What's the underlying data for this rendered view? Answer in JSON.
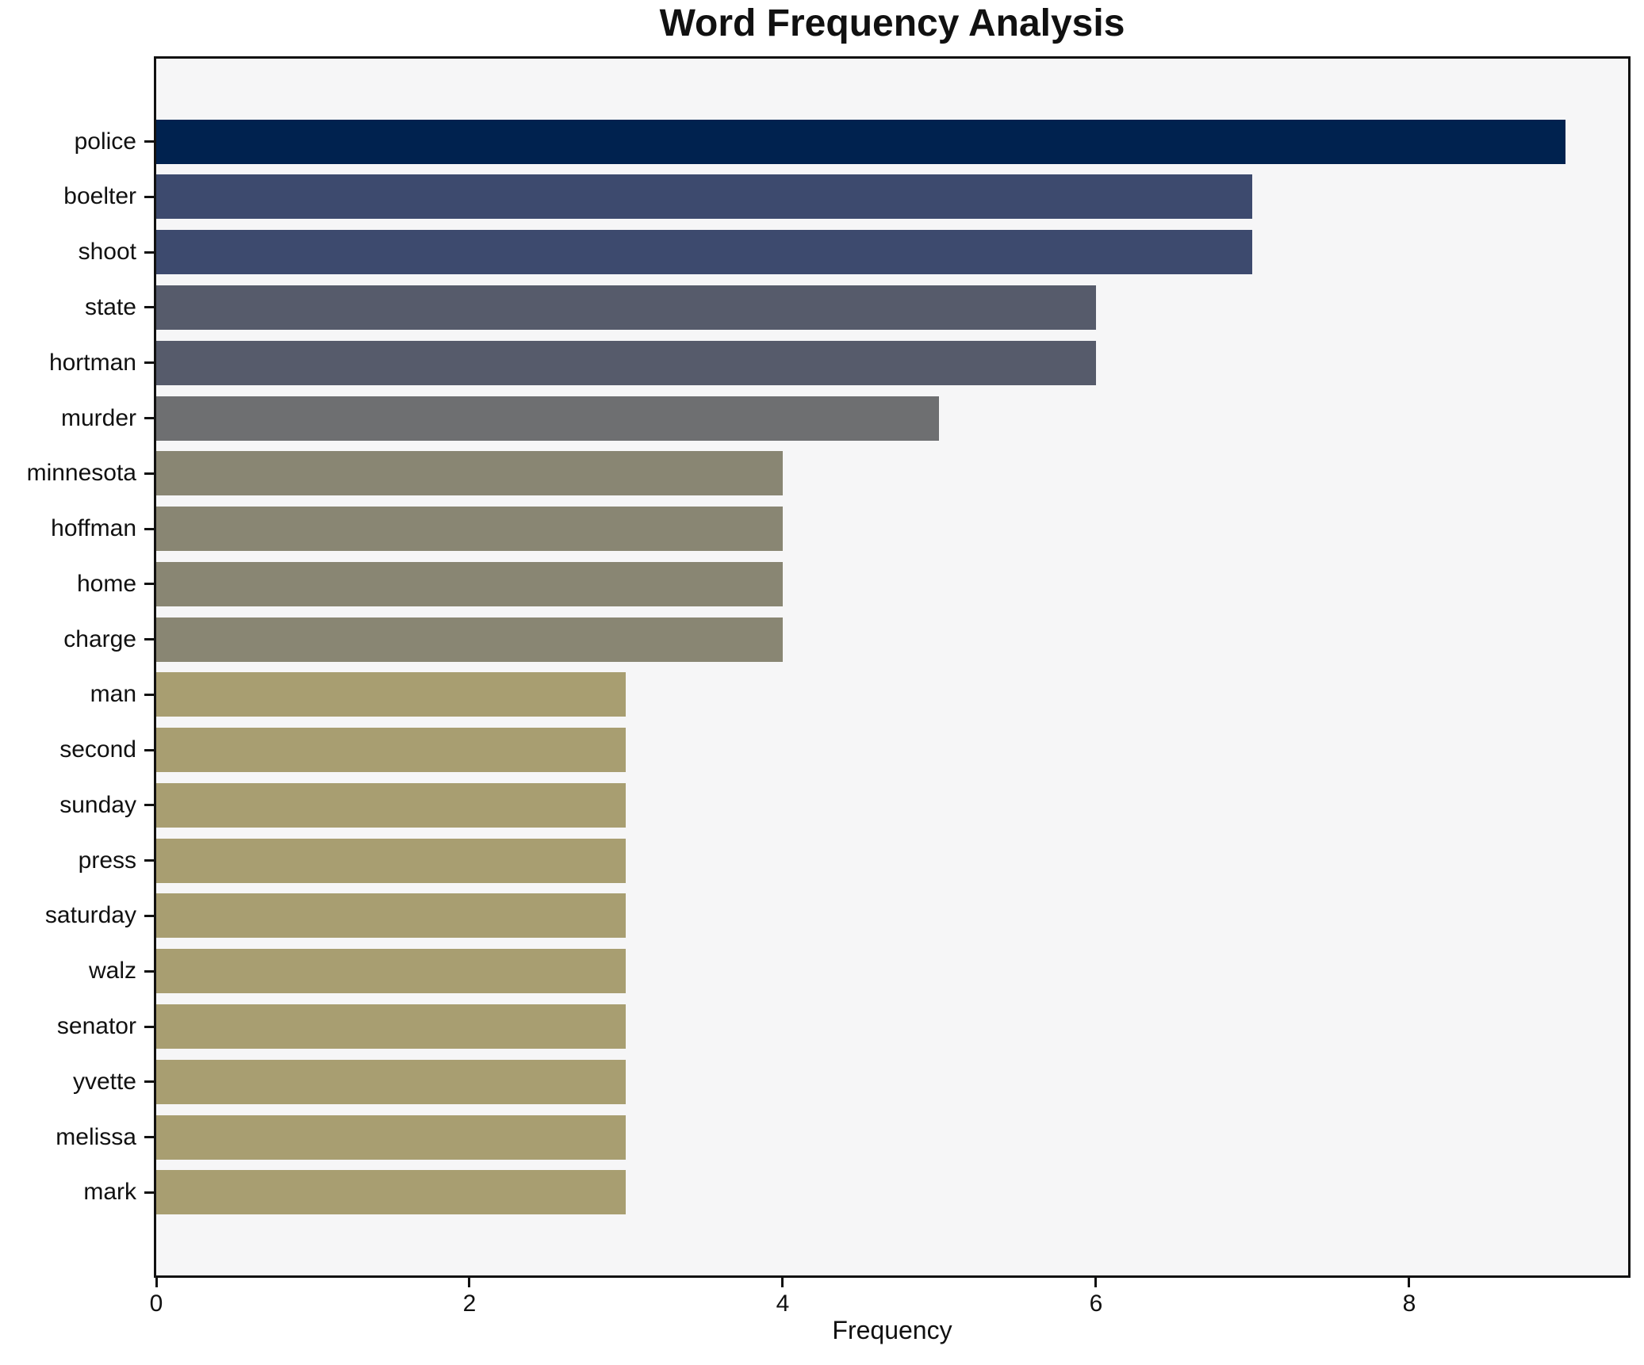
{
  "chart_data": {
    "type": "bar",
    "orientation": "horizontal",
    "title": "Word Frequency Analysis",
    "xlabel": "Frequency",
    "ylabel": "",
    "categories": [
      "police",
      "boelter",
      "shoot",
      "state",
      "hortman",
      "murder",
      "minnesota",
      "hoffman",
      "home",
      "charge",
      "man",
      "second",
      "sunday",
      "press",
      "saturday",
      "walz",
      "senator",
      "yvette",
      "melissa",
      "mark"
    ],
    "values": [
      9,
      7,
      7,
      6,
      6,
      5,
      4,
      4,
      4,
      4,
      3,
      3,
      3,
      3,
      3,
      3,
      3,
      3,
      3,
      3
    ],
    "xlim": [
      0,
      9.4
    ],
    "xticks": [
      0,
      2,
      4,
      6,
      8
    ],
    "grid": false,
    "legend": null,
    "colors": {
      "bar_by_value": {
        "9": "#00224f",
        "7": "#3d4a6e",
        "6": "#565b6b",
        "5": "#6e6f71",
        "4": "#898673",
        "3": "#a89e71"
      },
      "plot_background": "#f6f6f7",
      "figure_background": "#ffffff",
      "spine": "#111111",
      "text": "#111111"
    }
  }
}
